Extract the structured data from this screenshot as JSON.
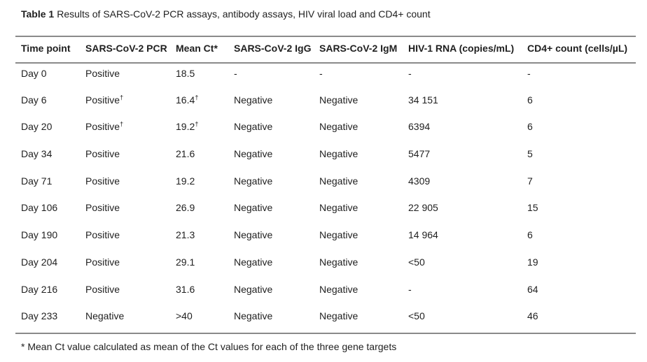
{
  "caption": {
    "label": "Table 1",
    "text": "Results of SARS-CoV-2 PCR assays, antibody assays, HIV viral load and CD4+ count"
  },
  "table": {
    "columns": [
      "Time point",
      "SARS-CoV-2 PCR",
      "Mean Ct*",
      "SARS-CoV-2 IgG",
      "SARS-CoV-2 IgM",
      "HIV-1 RNA (copies/mL)",
      "CD4+ count (cells/µL)"
    ],
    "rows": [
      [
        "Day 0",
        "Positive",
        "18.5",
        "-",
        "-",
        "-",
        "-"
      ],
      [
        "Day 6",
        "Positive†",
        "16.4†",
        "Negative",
        "Negative",
        "34 151",
        "6"
      ],
      [
        "Day 20",
        "Positive†",
        "19.2†",
        "Negative",
        "Negative",
        "6394",
        "6"
      ],
      [
        "Day 34",
        "Positive",
        "21.6",
        "Negative",
        "Negative",
        "5477",
        "5"
      ],
      [
        "Day 71",
        "Positive",
        "19.2",
        "Negative",
        "Negative",
        "4309",
        "7"
      ],
      [
        "Day 106",
        "Positive",
        "26.9",
        "Negative",
        "Negative",
        "22 905",
        "15"
      ],
      [
        "Day 190",
        "Positive",
        "21.3",
        "Negative",
        "Negative",
        "14 964",
        "6"
      ],
      [
        "Day 204",
        "Positive",
        "29.1",
        "Negative",
        "Negative",
        "<50",
        "19"
      ],
      [
        "Day 216",
        "Positive",
        "31.6",
        "Negative",
        "Negative",
        "-",
        "64"
      ],
      [
        "Day 233",
        "Negative",
        ">40",
        "Negative",
        "Negative",
        "<50",
        "46"
      ]
    ]
  },
  "footnote": {
    "text": "* Mean Ct value calculated as mean of the Ct values for each of the three gene targets"
  },
  "colors": {
    "rule": "#8a8a8a",
    "text": "#1f1f1f",
    "background": "#ffffff"
  }
}
